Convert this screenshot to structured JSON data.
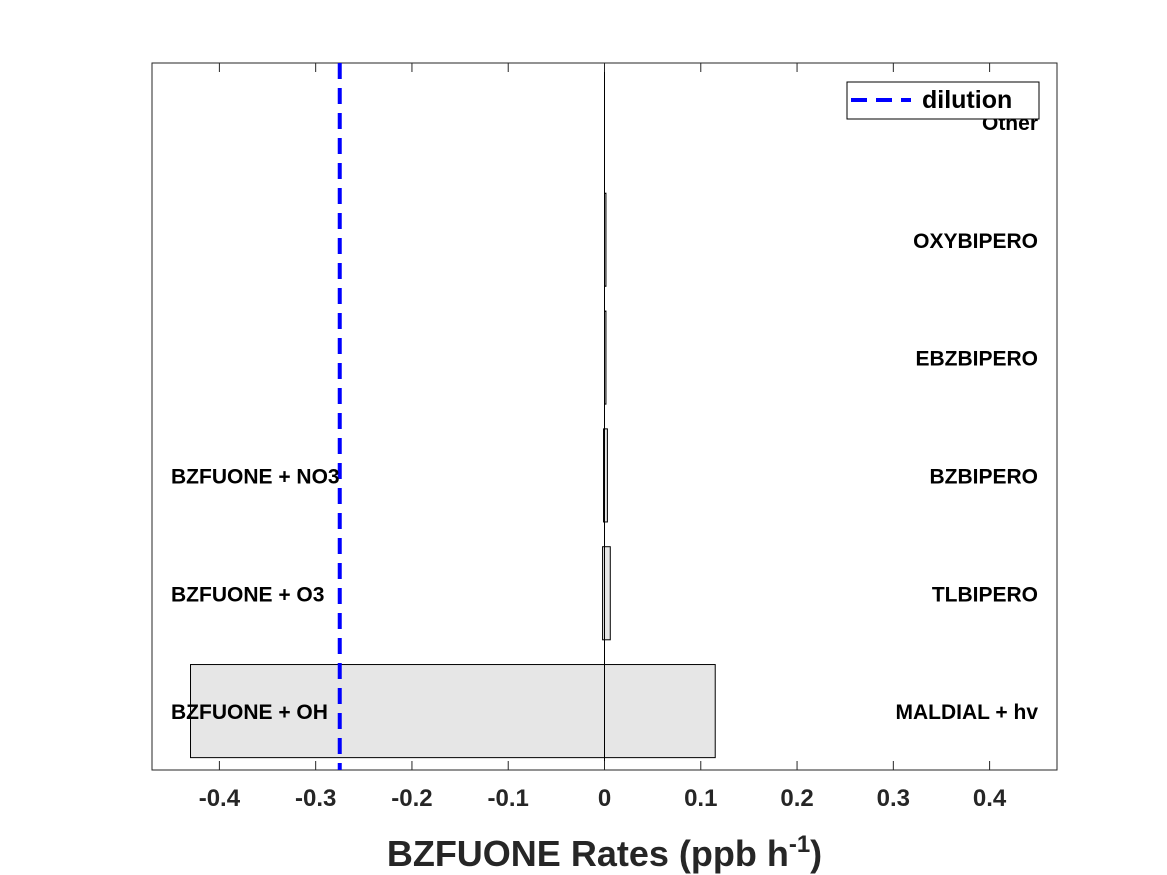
{
  "chart_data": {
    "type": "bar",
    "orientation": "horizontal-diverging",
    "title": "",
    "xlabel": "BZFUONE Rates (ppb h",
    "xlabel_superscript": "-1",
    "xlabel_suffix": ")",
    "xlim": [
      -0.47,
      0.47
    ],
    "x_ticks": [
      -0.4,
      -0.3,
      -0.2,
      -0.1,
      0,
      0.1,
      0.2,
      0.3,
      0.4
    ],
    "x_tick_labels": [
      "-0.4",
      "-0.3",
      "-0.2",
      "-0.1",
      "0",
      "0.1",
      "0.2",
      "0.3",
      "0.4"
    ],
    "grid": false,
    "bar_color": "#e6e6e6",
    "rows": [
      {
        "loss_label": "BZFUONE + OH",
        "loss_value": -0.43,
        "prod_label": "MALDIAL + hv",
        "prod_value": 0.115
      },
      {
        "loss_label": "BZFUONE + O3",
        "loss_value": -0.002,
        "prod_label": "TLBIPERO",
        "prod_value": 0.006
      },
      {
        "loss_label": "BZFUONE + NO3",
        "loss_value": -0.001,
        "prod_label": "BZBIPERO",
        "prod_value": 0.003
      },
      {
        "loss_label": "",
        "loss_value": 0,
        "prod_label": "EBZBIPERO",
        "prod_value": 0.0015
      },
      {
        "loss_label": "",
        "loss_value": 0,
        "prod_label": "OXYBIPERO",
        "prod_value": 0.0015
      },
      {
        "loss_label": "",
        "loss_value": 0,
        "prod_label": "Other",
        "prod_value": 0
      }
    ],
    "dilution": {
      "name": "dilution",
      "value": -0.275,
      "color": "#0000ff",
      "style": "dashed"
    },
    "legend": {
      "entries": [
        "dilution"
      ],
      "placement": "top-right"
    }
  }
}
